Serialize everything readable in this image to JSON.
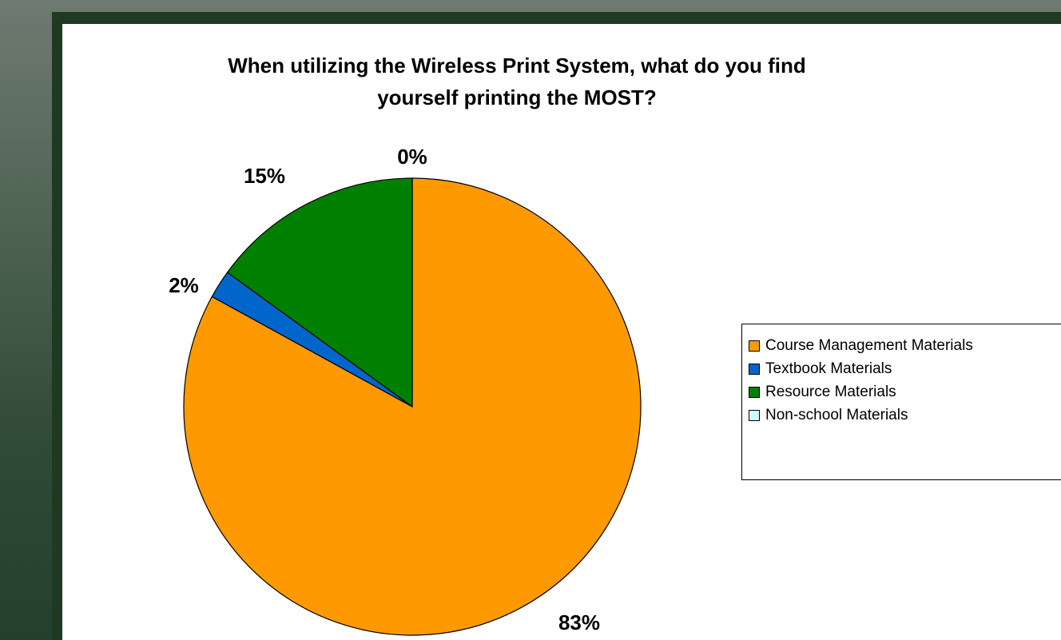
{
  "chart_data": {
    "type": "pie",
    "title": "When utilizing the Wireless Print System, what do you find yourself printing the MOST?",
    "title_lines": [
      "When utilizing the Wireless Print System, what do you find",
      "yourself printing the MOST?"
    ],
    "categories": [
      "Course Management Materials",
      "Textbook Materials",
      "Resource Materials",
      "Non-school Materials"
    ],
    "values": [
      83,
      2,
      15,
      0
    ],
    "labels": [
      "83%",
      "2%",
      "15%",
      "0%"
    ],
    "colors": [
      "#ff9900",
      "#0066cc",
      "#008000",
      "#ccffff"
    ],
    "legend_position": "right"
  }
}
